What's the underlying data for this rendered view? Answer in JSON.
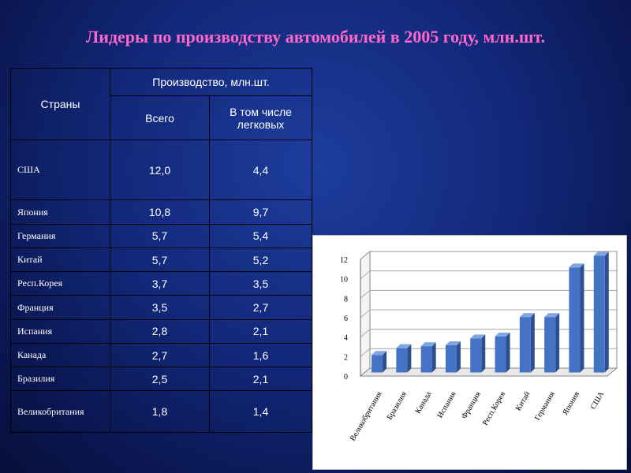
{
  "title": "Лидеры по производству автомобилей в 2005 году, млн.шт.",
  "table": {
    "header_country": "Страны",
    "header_production": "Производство, млн.шт.",
    "header_total": "Всего",
    "header_passenger": "В том числе легковых",
    "rows": [
      {
        "country": "США",
        "total": "12,0",
        "passenger": "4,4"
      },
      {
        "country": "Япония",
        "total": "10,8",
        "passenger": "9,7"
      },
      {
        "country": "Германия",
        "total": "5,7",
        "passenger": "5,4"
      },
      {
        "country": "Китай",
        "total": "5,7",
        "passenger": "5,2"
      },
      {
        "country": "Респ.Корея",
        "total": "3,7",
        "passenger": "3,5"
      },
      {
        "country": "Франция",
        "total": "3,5",
        "passenger": "2,7"
      },
      {
        "country": "Испания",
        "total": "2,8",
        "passenger": "2,1"
      },
      {
        "country": "Канада",
        "total": "2,7",
        "passenger": "1,6"
      },
      {
        "country": "Бразилия",
        "total": "2,5",
        "passenger": "2,1"
      },
      {
        "country": "Великобритания",
        "total": "1,8",
        "passenger": "1,4"
      }
    ]
  },
  "chart_data": {
    "type": "bar",
    "categories": [
      "Великобритания",
      "Бразилия",
      "Канада",
      "Испания",
      "Франция",
      "Респ.Корея",
      "Китай",
      "Германия",
      "Япония",
      "США"
    ],
    "values": [
      1.8,
      2.5,
      2.7,
      2.8,
      3.5,
      3.7,
      5.7,
      5.7,
      10.8,
      12.0
    ],
    "ylim": [
      0,
      12
    ],
    "yticks": [
      "0",
      "2",
      "4",
      "6",
      "8",
      "10",
      "12"
    ],
    "grid": true,
    "bar_color": "#4472c4",
    "title": "",
    "xlabel": "",
    "ylabel": ""
  }
}
